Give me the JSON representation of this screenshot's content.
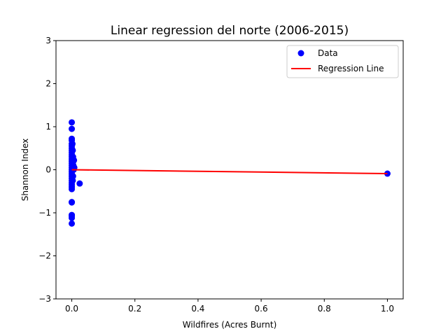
{
  "chart_data": {
    "type": "scatter",
    "title": "Linear regression del norte (2006-2015)",
    "xlabel": "Wildfires (Acres Burnt)",
    "ylabel": "Shannon Index",
    "xlim": [
      -0.05,
      1.05
    ],
    "ylim": [
      -3,
      3
    ],
    "xticks": [
      0.0,
      0.2,
      0.4,
      0.6,
      0.8,
      1.0
    ],
    "xtick_labels": [
      "0.0",
      "0.2",
      "0.4",
      "0.6",
      "0.8",
      "1.0"
    ],
    "yticks": [
      -3,
      -2,
      -1,
      0,
      1,
      2,
      3
    ],
    "ytick_labels": [
      "−3",
      "−2",
      "−1",
      "0",
      "1",
      "2",
      "3"
    ],
    "grid": false,
    "legend_position": "top-right",
    "series": [
      {
        "name": "Data",
        "kind": "scatter",
        "color": "#0000ff",
        "points": [
          [
            0.0,
            1.1
          ],
          [
            0.0,
            0.95
          ],
          [
            0.0,
            0.72
          ],
          [
            0.0,
            0.68
          ],
          [
            0.0,
            0.6
          ],
          [
            0.0,
            0.55
          ],
          [
            0.0,
            0.5
          ],
          [
            0.0,
            0.45
          ],
          [
            0.0,
            0.4
          ],
          [
            0.0,
            0.35
          ],
          [
            0.0,
            0.3
          ],
          [
            0.0,
            0.25
          ],
          [
            0.0,
            0.2
          ],
          [
            0.0,
            0.15
          ],
          [
            0.0,
            0.1
          ],
          [
            0.0,
            0.05
          ],
          [
            0.0,
            0.0
          ],
          [
            0.0,
            -0.05
          ],
          [
            0.0,
            -0.1
          ],
          [
            0.0,
            -0.15
          ],
          [
            0.0,
            -0.2
          ],
          [
            0.0,
            -0.25
          ],
          [
            0.0,
            -0.3
          ],
          [
            0.0,
            -0.35
          ],
          [
            0.0,
            -0.4
          ],
          [
            0.0,
            -0.45
          ],
          [
            0.0,
            -0.75
          ],
          [
            0.0,
            -0.76
          ],
          [
            0.0,
            -1.05
          ],
          [
            0.0,
            -1.08
          ],
          [
            0.0,
            -1.12
          ],
          [
            0.0,
            -1.25
          ],
          [
            0.002,
            0.6
          ],
          [
            0.003,
            0.45
          ],
          [
            0.004,
            0.3
          ],
          [
            0.005,
            0.2
          ],
          [
            0.005,
            0.1
          ],
          [
            0.006,
            0.0
          ],
          [
            0.004,
            -0.15
          ],
          [
            0.003,
            -0.25
          ],
          [
            0.007,
            0.22
          ],
          [
            0.008,
            0.05
          ],
          [
            0.025,
            -0.32
          ],
          [
            1.0,
            -0.09
          ]
        ]
      },
      {
        "name": "Regression Line",
        "kind": "line",
        "color": "#ff0000",
        "points": [
          [
            0.0,
            0.0
          ],
          [
            1.0,
            -0.09
          ]
        ]
      }
    ]
  }
}
